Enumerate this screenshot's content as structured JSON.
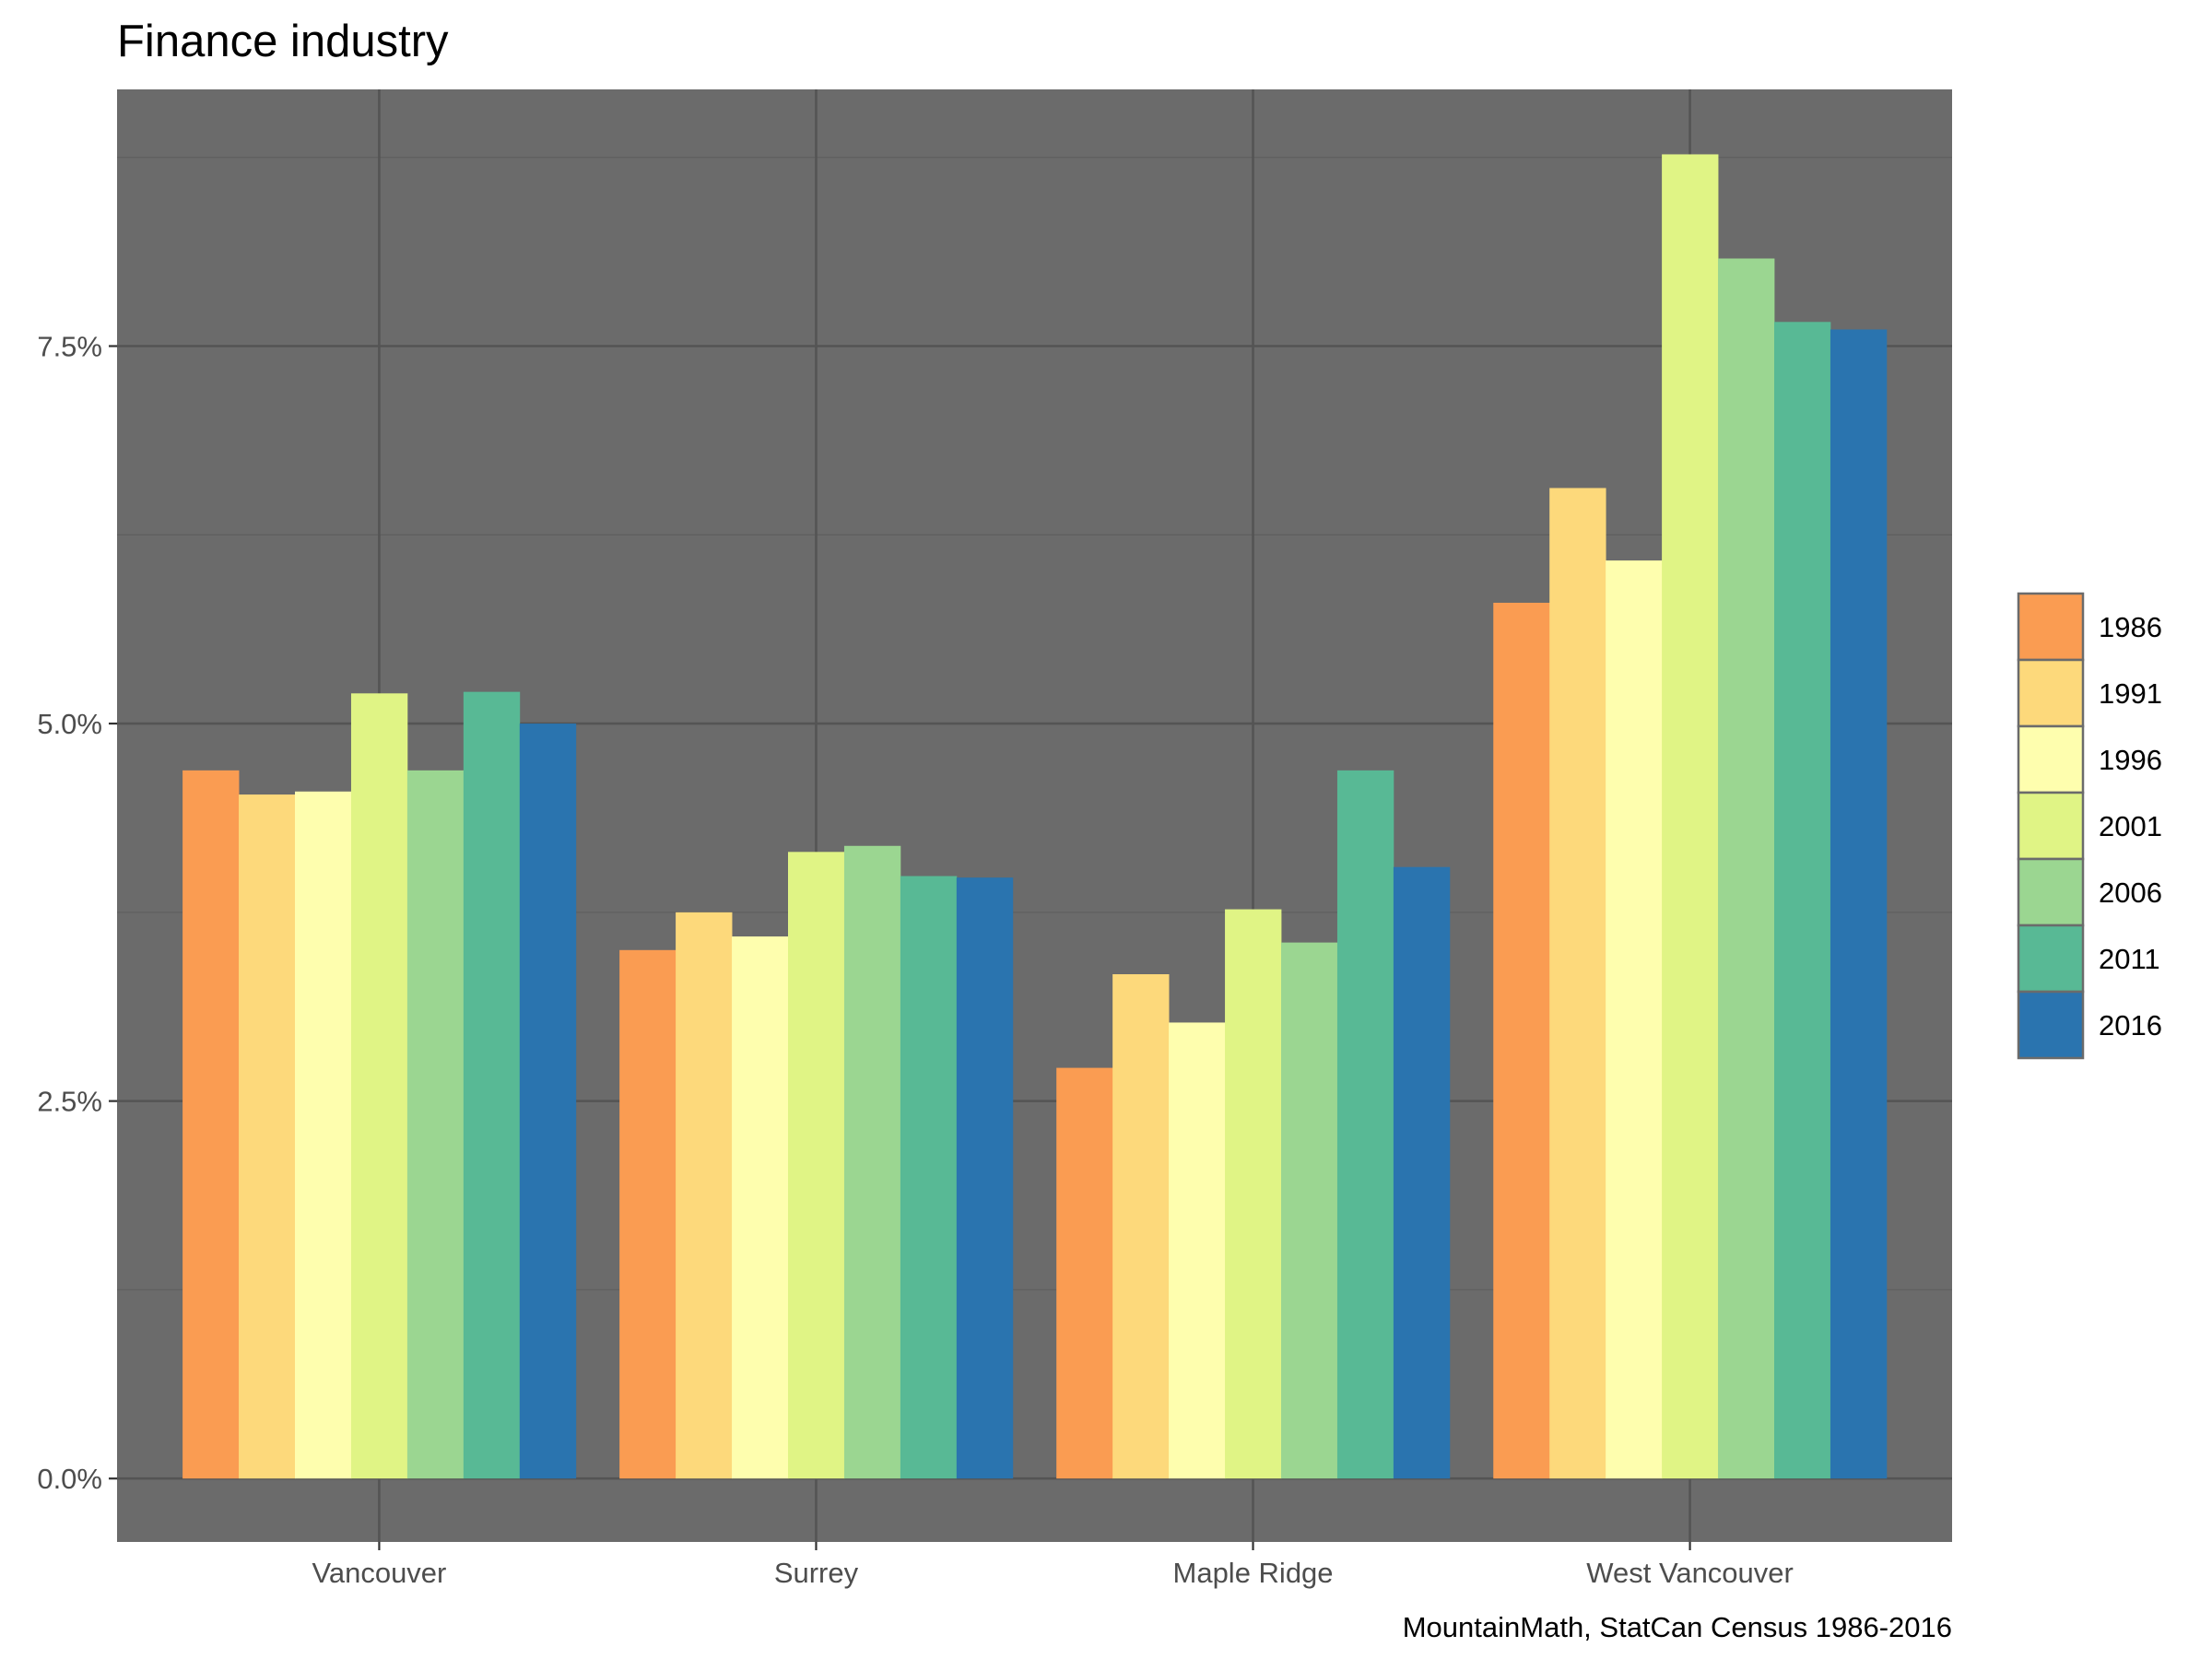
{
  "chart_data": {
    "type": "bar",
    "title": "Finance industry",
    "caption": "MountainMath, StatCan Census 1986-2016",
    "xlabel": "",
    "ylabel": "",
    "categories": [
      "Vancouver",
      "Surrey",
      "Maple Ridge",
      "West Vancouver"
    ],
    "y_ticks": [
      {
        "value": 0.0,
        "label": "0.0%"
      },
      {
        "value": 2.5,
        "label": "2.5%"
      },
      {
        "value": 5.0,
        "label": "5.0%"
      },
      {
        "value": 7.5,
        "label": "7.5%"
      }
    ],
    "ylim": [
      -0.42,
      9.2
    ],
    "y_unit": "percent",
    "grid": true,
    "legend_position": "right",
    "series": [
      {
        "name": "1986",
        "color": "#FA9C52",
        "values": [
          4.69,
          3.5,
          2.72,
          5.8
        ]
      },
      {
        "name": "1991",
        "color": "#FDD97B",
        "values": [
          4.53,
          3.75,
          3.34,
          6.56
        ]
      },
      {
        "name": "1996",
        "color": "#FEFEAE",
        "values": [
          4.55,
          3.59,
          3.02,
          6.08
        ]
      },
      {
        "name": "2001",
        "color": "#E0F485",
        "values": [
          5.2,
          4.15,
          3.77,
          8.77
        ]
      },
      {
        "name": "2006",
        "color": "#9BD691",
        "values": [
          4.69,
          4.19,
          3.55,
          8.08
        ]
      },
      {
        "name": "2011",
        "color": "#58B995",
        "values": [
          5.21,
          3.99,
          4.69,
          7.66
        ]
      },
      {
        "name": "2016",
        "color": "#2A74AF",
        "values": [
          5.0,
          3.98,
          4.05,
          7.61
        ]
      }
    ],
    "colors": {
      "panel_background": "#6B6B6B",
      "grid_major": "#545454",
      "grid_minor": "#5F5F5F",
      "legend_border": "#6B6B6B"
    }
  }
}
